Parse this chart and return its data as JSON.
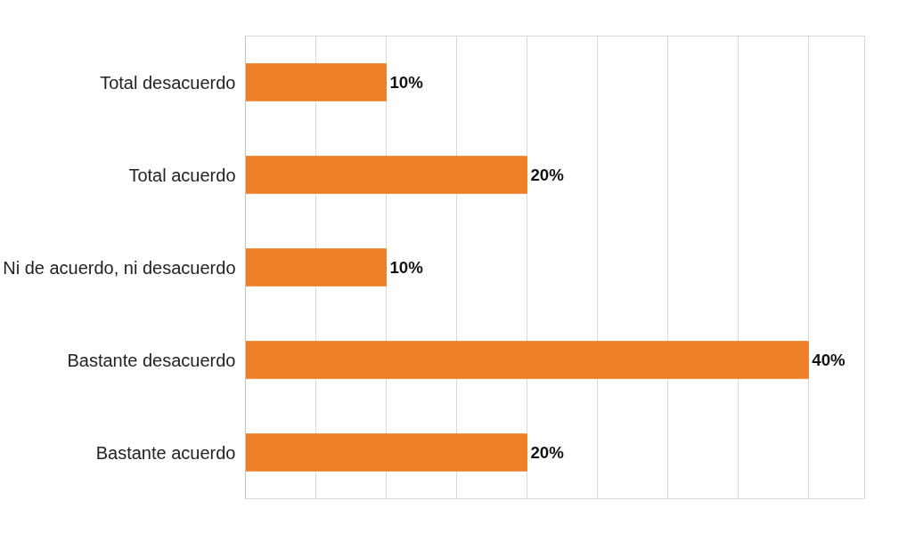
{
  "chart_data": {
    "type": "bar",
    "orientation": "horizontal",
    "categories": [
      "Total desacuerdo",
      "Total acuerdo",
      "Ni de acuerdo, ni desacuerdo",
      "Bastante desacuerdo",
      "Bastante acuerdo"
    ],
    "values": [
      10,
      20,
      10,
      40,
      20
    ],
    "value_labels": [
      "10%",
      "20%",
      "10%",
      "40%",
      "20%"
    ],
    "color": "#f07f2a",
    "xlim": [
      0,
      44
    ],
    "xticks": [
      {
        "value": 0,
        "label": null
      },
      {
        "value": 5,
        "label": null
      },
      {
        "value": 10,
        "label": null
      },
      {
        "value": 15,
        "label": null
      },
      {
        "value": 20,
        "label": null
      },
      {
        "value": 25,
        "label": null
      },
      {
        "value": 30,
        "label": null
      },
      {
        "value": 35,
        "label": null
      },
      {
        "value": 40,
        "label": null
      }
    ],
    "grid": "x",
    "tick_labels": false
  }
}
